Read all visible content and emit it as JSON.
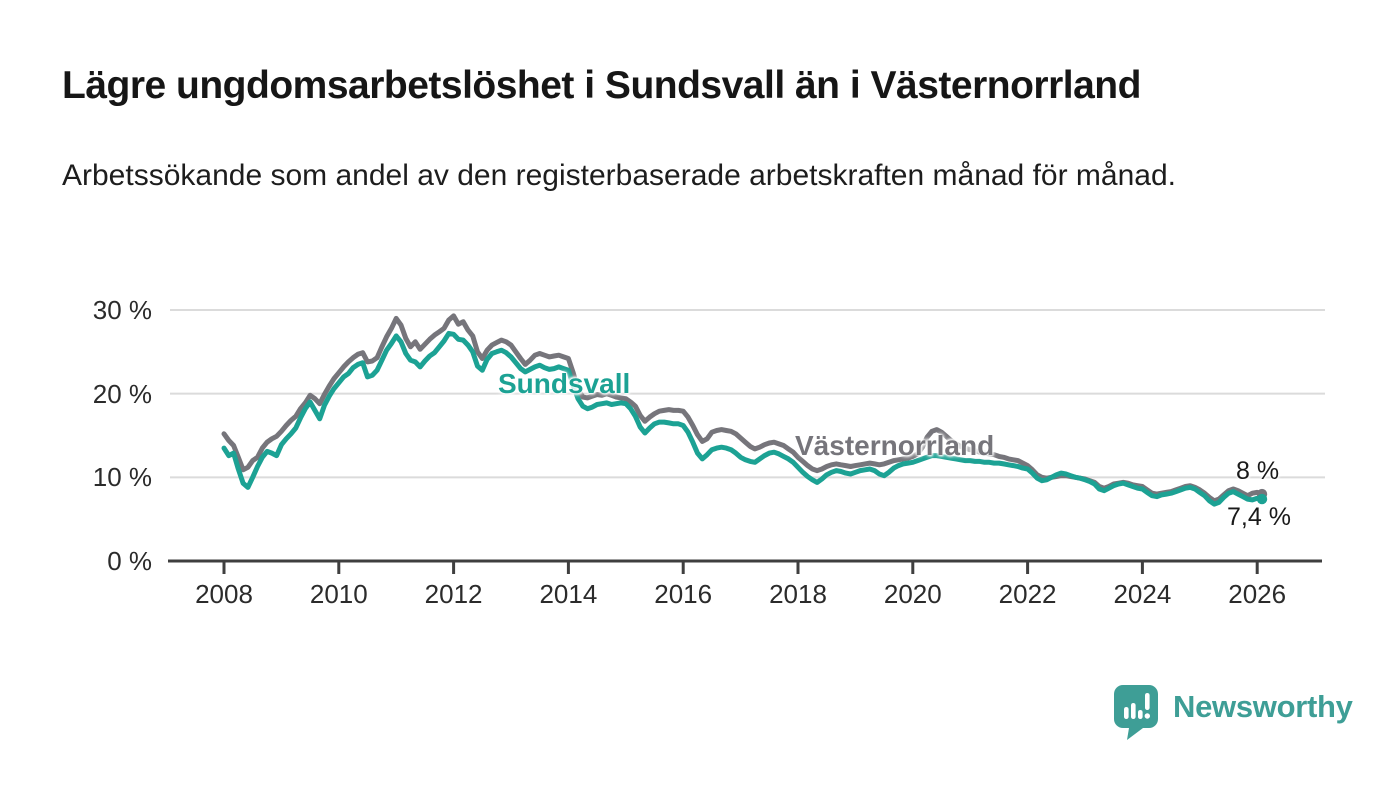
{
  "header": {
    "title": "Lägre ungdomsarbetslöshet i Sundsvall än i Västernorrland",
    "subtitle": "Arbetssökande som andel av den registerbaserade arbetskraften månad för månad."
  },
  "colors": {
    "grid": "#DBDBDB",
    "axis": "#3F3F3F",
    "teal_series": "#1CA294",
    "gray_series": "#76757B",
    "end_label_text": "#1a1a1a",
    "brand_teal": "#3E9E96"
  },
  "chart_data": {
    "type": "line",
    "x_start_year": 2008,
    "points_per_year": 12,
    "xlim": [
      2007.06,
      2027.13
    ],
    "ylim": [
      0,
      30
    ],
    "grid": "horizontal-lines",
    "legend": "inline-series-labels",
    "y_ticks": [
      30,
      20,
      10,
      0
    ],
    "y_tick_labels": [
      "30 %",
      "20 %",
      "10 %",
      "0 %"
    ],
    "x_ticks": [
      2008,
      2010,
      2012,
      2014,
      2016,
      2018,
      2020,
      2022,
      2024,
      2026
    ],
    "series": [
      {
        "name": "Västernorrland",
        "slug": "vasternorrland",
        "color": "#76757B",
        "end_label": "8 %",
        "end_value": 8.0,
        "values": [
          15.2,
          14.4,
          13.8,
          12.4,
          10.9,
          11.2,
          12.0,
          12.4,
          13.5,
          14.2,
          14.6,
          14.9,
          15.5,
          16.2,
          16.8,
          17.3,
          18.2,
          18.9,
          19.8,
          19.4,
          18.8,
          19.9,
          20.9,
          21.8,
          22.5,
          23.2,
          23.8,
          24.3,
          24.7,
          24.9,
          23.8,
          23.9,
          24.3,
          25.6,
          26.8,
          27.8,
          29.0,
          28.2,
          26.6,
          25.6,
          26.2,
          25.3,
          25.9,
          26.5,
          27.0,
          27.4,
          27.8,
          28.8,
          29.3,
          28.3,
          28.6,
          27.6,
          26.9,
          25.0,
          24.2,
          25.2,
          25.8,
          26.1,
          26.4,
          26.2,
          25.8,
          25.0,
          24.2,
          23.5,
          24.0,
          24.6,
          24.8,
          24.6,
          24.4,
          24.5,
          24.6,
          24.4,
          24.2,
          22.5,
          20.5,
          19.6,
          19.5,
          19.7,
          19.9,
          19.8,
          20.0,
          19.8,
          19.6,
          19.5,
          19.4,
          19.0,
          18.5,
          17.4,
          16.7,
          17.2,
          17.6,
          17.9,
          18.0,
          18.1,
          18.0,
          18.0,
          17.9,
          17.2,
          16.2,
          15.1,
          14.3,
          14.6,
          15.4,
          15.6,
          15.7,
          15.6,
          15.5,
          15.2,
          14.7,
          14.2,
          13.7,
          13.4,
          13.6,
          13.9,
          14.1,
          14.2,
          14.0,
          13.8,
          13.4,
          13.0,
          12.4,
          11.9,
          11.4,
          11.0,
          10.8,
          11.0,
          11.3,
          11.5,
          11.6,
          11.5,
          11.4,
          11.3,
          11.4,
          11.5,
          11.6,
          11.7,
          11.6,
          11.5,
          11.6,
          11.8,
          12.0,
          12.1,
          12.2,
          12.3,
          12.5,
          12.8,
          13.6,
          14.8,
          15.5,
          15.7,
          15.4,
          14.9,
          14.4,
          14.0,
          13.7,
          13.5,
          13.3,
          13.2,
          13.0,
          12.9,
          12.8,
          12.7,
          12.5,
          12.4,
          12.2,
          12.1,
          12.0,
          11.7,
          11.4,
          10.9,
          10.3,
          10.0,
          9.9,
          10.0,
          10.1,
          10.2,
          10.2,
          10.1,
          10.0,
          9.9,
          9.8,
          9.6,
          9.4,
          8.9,
          8.7,
          8.9,
          9.2,
          9.3,
          9.4,
          9.3,
          9.1,
          9.0,
          8.9,
          8.5,
          8.1,
          8.0,
          8.1,
          8.2,
          8.3,
          8.5,
          8.7,
          8.9,
          9.0,
          8.8,
          8.5,
          8.1,
          7.6,
          7.2,
          7.4,
          7.9,
          8.4,
          8.6,
          8.4,
          8.1,
          7.8,
          8.1,
          8.2,
          8.0
        ]
      },
      {
        "name": "Sundsvall",
        "slug": "sundsvall",
        "color": "#1CA294",
        "end_label": "7,4 %",
        "end_value": 7.4,
        "values": [
          13.5,
          12.6,
          12.9,
          11.0,
          9.3,
          8.8,
          10.0,
          11.3,
          12.4,
          13.1,
          12.9,
          12.6,
          13.9,
          14.6,
          15.2,
          15.9,
          17.1,
          18.2,
          19.0,
          18.0,
          17.0,
          18.6,
          19.7,
          20.6,
          21.3,
          22.0,
          22.4,
          23.1,
          23.5,
          23.7,
          22.0,
          22.2,
          22.8,
          24.0,
          25.2,
          26.0,
          26.9,
          26.2,
          24.8,
          24.0,
          23.8,
          23.2,
          23.9,
          24.5,
          24.9,
          25.6,
          26.3,
          27.2,
          27.1,
          26.5,
          26.4,
          25.8,
          25.0,
          23.3,
          22.8,
          24.1,
          24.8,
          25.0,
          25.2,
          24.9,
          24.4,
          23.7,
          23.0,
          22.6,
          22.9,
          23.2,
          23.4,
          23.1,
          22.9,
          23.0,
          23.2,
          23.0,
          22.8,
          21.0,
          19.4,
          18.5,
          18.2,
          18.4,
          18.7,
          18.8,
          18.9,
          18.7,
          18.8,
          18.9,
          18.8,
          18.2,
          17.3,
          16.0,
          15.3,
          15.9,
          16.4,
          16.6,
          16.6,
          16.5,
          16.4,
          16.4,
          16.2,
          15.4,
          14.2,
          12.9,
          12.2,
          12.7,
          13.3,
          13.5,
          13.6,
          13.5,
          13.3,
          12.9,
          12.4,
          12.1,
          11.9,
          11.8,
          12.2,
          12.6,
          12.9,
          13.0,
          12.8,
          12.5,
          12.2,
          11.8,
          11.2,
          10.6,
          10.1,
          9.7,
          9.4,
          9.8,
          10.3,
          10.6,
          10.8,
          10.7,
          10.5,
          10.4,
          10.6,
          10.8,
          10.9,
          11.0,
          10.8,
          10.4,
          10.2,
          10.6,
          11.1,
          11.4,
          11.6,
          11.7,
          11.8,
          12.0,
          12.2,
          12.4,
          12.6,
          12.6,
          12.5,
          12.4,
          12.3,
          12.2,
          12.1,
          12.0,
          12.0,
          11.9,
          11.9,
          11.8,
          11.8,
          11.7,
          11.7,
          11.6,
          11.5,
          11.4,
          11.3,
          11.1,
          11.0,
          10.5,
          9.9,
          9.6,
          9.7,
          10.0,
          10.3,
          10.5,
          10.4,
          10.2,
          10.0,
          9.9,
          9.7,
          9.5,
          9.2,
          8.6,
          8.4,
          8.7,
          9.0,
          9.2,
          9.3,
          9.1,
          8.9,
          8.7,
          8.6,
          8.2,
          7.8,
          7.7,
          7.9,
          8.0,
          8.1,
          8.3,
          8.5,
          8.7,
          8.8,
          8.6,
          8.2,
          7.8,
          7.2,
          6.8,
          7.0,
          7.6,
          8.1,
          8.3,
          8.0,
          7.7,
          7.4,
          7.3,
          7.5,
          7.4
        ]
      }
    ]
  },
  "branding": {
    "logo_text": "Newsworthy"
  }
}
